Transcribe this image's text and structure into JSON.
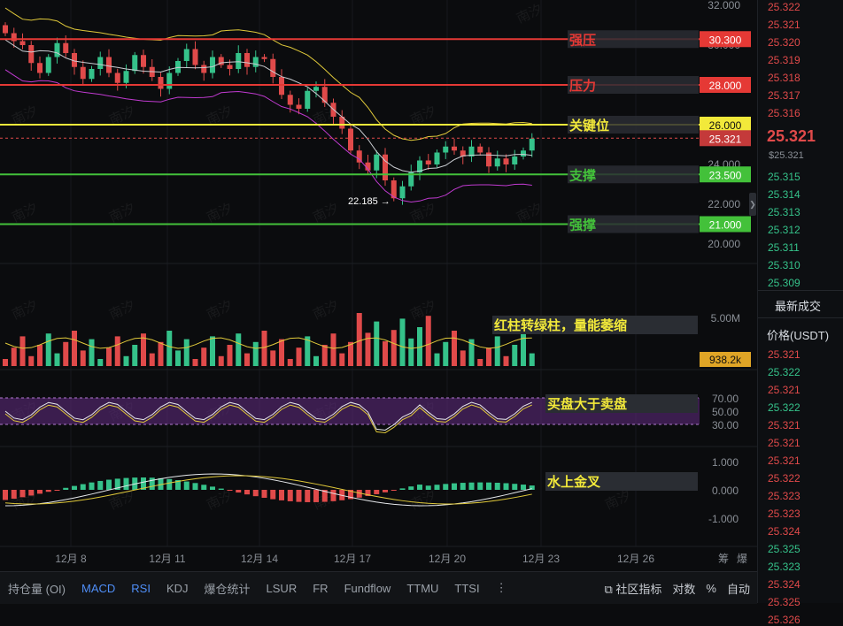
{
  "chart_data": {
    "type": "candlestick",
    "x_ticks": [
      "12月 8",
      "12月 11",
      "12月 14",
      "12月 17",
      "12月 20",
      "12月 23",
      "12月 26"
    ],
    "price_axis_ticks": [
      "32.000",
      "30.000",
      "28.000",
      "26.000",
      "24.000",
      "22.000",
      "20.000"
    ],
    "ylim": [
      19.0,
      32.6
    ],
    "levels": [
      {
        "value": 30.3,
        "label": "强压",
        "color": "#e53935"
      },
      {
        "value": 28.0,
        "label": "压力",
        "color": "#e53935"
      },
      {
        "value": 26.0,
        "label": "关键位",
        "color": "#f2e93a"
      },
      {
        "value": 23.5,
        "label": "支撑",
        "color": "#43c13a"
      },
      {
        "value": 21.0,
        "label": "强撑",
        "color": "#43c13a"
      }
    ],
    "last_price": 25.321,
    "low_marker": "22.185",
    "candle_close": [
      30.6,
      30.2,
      30.0,
      29.1,
      28.6,
      29.4,
      30.1,
      29.6,
      28.9,
      28.3,
      28.8,
      29.4,
      28.6,
      28.1,
      28.7,
      29.5,
      28.9,
      28.4,
      27.8,
      28.6,
      29.2,
      29.8,
      29.0,
      28.6,
      29.4,
      29.0,
      28.8,
      29.6,
      28.9,
      29.4,
      29.3,
      28.4,
      27.5,
      27.0,
      26.8,
      27.7,
      27.9,
      27.1,
      26.4,
      25.8,
      24.7,
      24.1,
      23.7,
      24.5,
      23.2,
      22.3,
      22.9,
      23.6,
      24.2,
      24.0,
      24.6,
      24.9,
      24.7,
      24.4,
      24.9,
      24.6,
      23.9,
      24.3,
      24.0,
      24.4,
      24.7,
      25.3
    ],
    "volume_axis_ticks": [
      "5.00M"
    ],
    "volume_last": "938.2k",
    "rsi_axis_ticks": [
      "70.00",
      "50.00",
      "30.00"
    ],
    "macd_axis_ticks": [
      "1.000",
      "0.000",
      "-1.000"
    ],
    "annotations": {
      "volume": "红柱转绿柱，量能萎缩",
      "rsi": "买盘大于卖盘",
      "macd": "水上金叉"
    },
    "axis_extra": {
      "left": "筹",
      "right": "爆"
    }
  },
  "toolbar": {
    "items": [
      "持仓量 (OI)",
      "MACD",
      "RSI",
      "KDJ",
      "爆仓统计",
      "LSUR",
      "FR",
      "Fundflow",
      "TTMU",
      "TTSI"
    ],
    "more": "⋮",
    "right": {
      "indicators": "社区指标",
      "log": "对数",
      "percent": "%",
      "auto": "自动"
    }
  },
  "orderbook": {
    "asks": [
      "25.322",
      "25.321",
      "25.320",
      "25.319",
      "25.318",
      "25.317",
      "25.316"
    ],
    "last": "25.321",
    "mark": "$25.321",
    "bids": [
      "25.315",
      "25.314",
      "25.313",
      "25.312",
      "25.311",
      "25.310",
      "25.309"
    ],
    "trades_title": "最新成交",
    "price_header": "价格(USDT)",
    "trades": [
      {
        "p": "25.321",
        "side": "up"
      },
      {
        "p": "25.322",
        "side": "down"
      },
      {
        "p": "25.321",
        "side": "up"
      },
      {
        "p": "25.322",
        "side": "down"
      },
      {
        "p": "25.321",
        "side": "up"
      },
      {
        "p": "25.321",
        "side": "up"
      },
      {
        "p": "25.321",
        "side": "up"
      },
      {
        "p": "25.322",
        "side": "up"
      },
      {
        "p": "25.323",
        "side": "up"
      },
      {
        "p": "25.323",
        "side": "up"
      },
      {
        "p": "25.324",
        "side": "up"
      },
      {
        "p": "25.325",
        "side": "down"
      },
      {
        "p": "25.323",
        "side": "down"
      },
      {
        "p": "25.324",
        "side": "up"
      },
      {
        "p": "25.325",
        "side": "up"
      },
      {
        "p": "25.326",
        "side": "up"
      }
    ]
  },
  "watermark": "南汐",
  "colors": {
    "up": "#35c28a",
    "down": "#e04a4a",
    "bg": "#0b0c0e"
  }
}
